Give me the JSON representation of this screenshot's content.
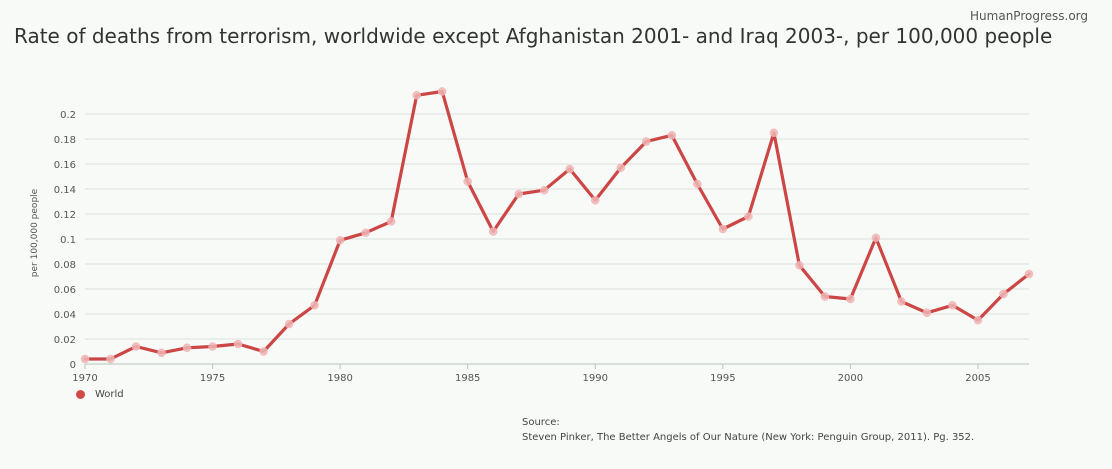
{
  "brand": "HumanProgress.org",
  "source": {
    "label": "Source:",
    "text": "Steven Pinker, The Better Angels of Our Nature (New York: Penguin Group, 2011). Pg. 352."
  },
  "colors": {
    "line": "#cc4646",
    "marker": "#f0b5b5",
    "grid": "#dde3dd"
  },
  "chart_data": {
    "type": "line",
    "title": "Rate of deaths from terrorism, worldwide except Afghanistan 2001- and Iraq 2003-, per 100,000 people",
    "xlabel": "",
    "ylabel": "per 100,000 people",
    "xlim": [
      1970,
      2007
    ],
    "ylim": [
      0,
      0.22
    ],
    "x_ticks": [
      1970,
      1975,
      1980,
      1985,
      1990,
      1995,
      2000,
      2005
    ],
    "y_ticks": [
      0,
      0.02,
      0.04,
      0.06,
      0.08,
      0.1,
      0.12,
      0.14,
      0.16,
      0.18,
      0.2
    ],
    "y_tick_labels": [
      "0",
      "0.02",
      "0.04",
      "0.06",
      "0.08",
      "0.1",
      "0.12",
      "0.14",
      "0.16",
      "0.18",
      "0.2"
    ],
    "legend": "bottom-left",
    "grid": true,
    "series": [
      {
        "name": "World",
        "x": [
          1970,
          1971,
          1972,
          1973,
          1974,
          1975,
          1976,
          1977,
          1978,
          1979,
          1980,
          1981,
          1982,
          1983,
          1984,
          1985,
          1986,
          1987,
          1988,
          1989,
          1990,
          1991,
          1992,
          1993,
          1994,
          1995,
          1996,
          1997,
          1998,
          1999,
          2000,
          2001,
          2002,
          2003,
          2004,
          2005,
          2006,
          2007
        ],
        "values": [
          0.004,
          0.004,
          0.014,
          0.009,
          0.013,
          0.014,
          0.016,
          0.01,
          0.032,
          0.047,
          0.099,
          0.105,
          0.114,
          0.215,
          0.218,
          0.146,
          0.106,
          0.136,
          0.139,
          0.156,
          0.131,
          0.157,
          0.178,
          0.183,
          0.144,
          0.108,
          0.118,
          0.185,
          0.079,
          0.054,
          0.052,
          0.101,
          0.05,
          0.041,
          0.047,
          0.035,
          0.056,
          0.072
        ]
      }
    ]
  }
}
